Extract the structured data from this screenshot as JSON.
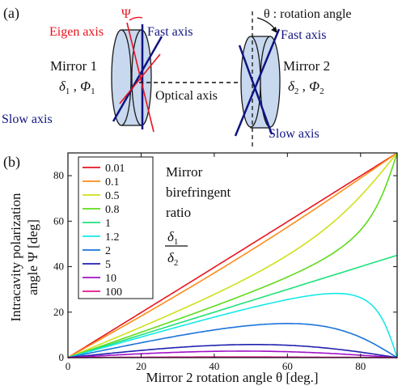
{
  "panel_a": {
    "label": "(a)",
    "psi_symbol": "Ψ",
    "eigen_axis": "Eigen axis",
    "fast_axis_1": "Fast axis",
    "slow_axis_1": "Slow axis",
    "mirror1_title": "Mirror 1",
    "mirror1_d": "δ",
    "mirror1_d_sub": "1",
    "mirror1_comma": " , ",
    "mirror1_p": "Φ",
    "mirror1_p_sub": "1",
    "optical_axis": "Optical axis",
    "rotation_label": "θ : rotation angle",
    "fast_axis_2": "Fast axis",
    "slow_axis_2": "Slow axis",
    "mirror2_title": "Mirror 2",
    "mirror2_d": "δ",
    "mirror2_d_sub": "2",
    "mirror2_comma": " , ",
    "mirror2_p": "Φ",
    "mirror2_p_sub": "2",
    "colors": {
      "eigen": "#e8141e",
      "axes": "#101480",
      "mirror_fill": "#c8d8ee"
    }
  },
  "chart_data": {
    "type": "line",
    "panel_label": "(b)",
    "xlabel": "Mirror 2 rotation angle θ [deg.]",
    "ylabel_line1": "Intracavity polarization",
    "ylabel_line2": "angle Ψ [deg]",
    "xlim": [
      0,
      90
    ],
    "ylim": [
      0,
      90
    ],
    "xticks": [
      0,
      20,
      40,
      60,
      80
    ],
    "yticks": [
      0,
      20,
      40,
      60,
      80
    ],
    "legend_title": [
      "Mirror",
      "birefringent",
      "ratio"
    ],
    "legend_ratio_num": "δ1",
    "legend_ratio_den": "δ2",
    "legend_placement": "top-left",
    "series": [
      {
        "name": "0.01",
        "ratio": 0.01,
        "color": "#e8141e"
      },
      {
        "name": "0.1",
        "ratio": 0.1,
        "color": "#ff8c1a"
      },
      {
        "name": "0.5",
        "ratio": 0.5,
        "color": "#cfe01a"
      },
      {
        "name": "0.8",
        "ratio": 0.8,
        "color": "#5fdc1a"
      },
      {
        "name": "1",
        "ratio": 1,
        "color": "#1ee27a"
      },
      {
        "name": "1.2",
        "ratio": 1.2,
        "color": "#17e8e8"
      },
      {
        "name": "2",
        "ratio": 2,
        "color": "#1a74dc"
      },
      {
        "name": "5",
        "ratio": 5,
        "color": "#2020b0"
      },
      {
        "name": "10",
        "ratio": 10,
        "color": "#a010c8"
      },
      {
        "name": "100",
        "ratio": 100,
        "color": "#e0148c"
      }
    ]
  }
}
